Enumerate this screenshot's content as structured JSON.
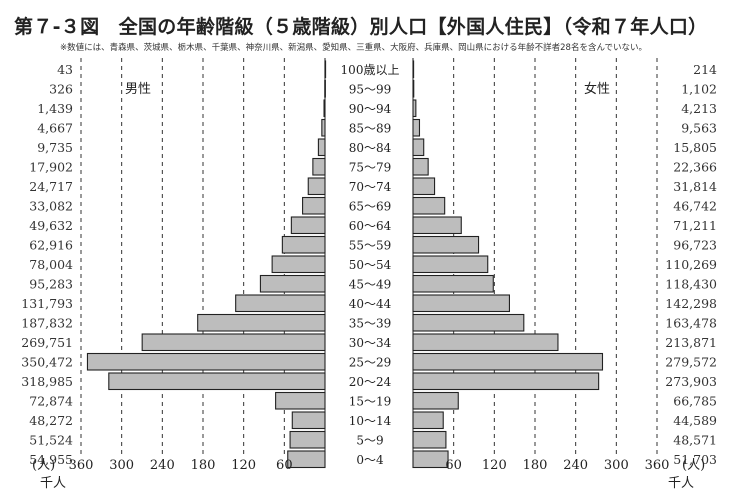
{
  "page": {
    "title": "第７-３図　全国の年齢階級（５歳階級）別人口【外国人住民】（令和７年人口）",
    "note": "※数値には、青森県、茨城県、栃木県、千葉県、神奈川県、新潟県、愛知県、三重県、大阪府、兵庫県、岡山県における年齢不詳者28名を含んでいない。"
  },
  "chart_data": {
    "type": "bar",
    "orientation": "horizontal-pyramid",
    "title": "第７-３図　全国の年齢階級（５歳階級）別人口【外国人住民】（令和７年人口）",
    "categories": [
      "100歳以上",
      "95～99",
      "90～94",
      "85～89",
      "80～84",
      "75～79",
      "70～74",
      "65～69",
      "60～64",
      "55～59",
      "50～54",
      "45～49",
      "40～44",
      "35～39",
      "30～34",
      "25～29",
      "20～24",
      "15～19",
      "10～14",
      "5～9",
      "0～4"
    ],
    "series": [
      {
        "name": "男性",
        "values": [
          43,
          326,
          1439,
          4667,
          9735,
          17902,
          24717,
          33082,
          49632,
          62916,
          78004,
          95283,
          131793,
          187832,
          269751,
          350472,
          318985,
          72874,
          48272,
          51524,
          54955
        ]
      },
      {
        "name": "女性",
        "values": [
          214,
          1102,
          4213,
          9563,
          15805,
          22366,
          31814,
          46742,
          71211,
          96723,
          110269,
          118430,
          142298,
          163478,
          213871,
          279572,
          273903,
          66785,
          44589,
          48571,
          51703
        ]
      }
    ],
    "value_labels": {
      "男性": [
        "43",
        "326",
        "1,439",
        "4,667",
        "9,735",
        "17,902",
        "24,717",
        "33,082",
        "49,632",
        "62,916",
        "78,004",
        "95,283",
        "131,793",
        "187,832",
        "269,751",
        "350,472",
        "318,985",
        "72,874",
        "48,272",
        "51,524",
        "54,955"
      ],
      "女性": [
        "214",
        "1,102",
        "4,213",
        "9,563",
        "15,805",
        "22,366",
        "31,814",
        "46,742",
        "71,211",
        "96,723",
        "110,269",
        "118,430",
        "142,298",
        "163,478",
        "213,871",
        "279,572",
        "273,903",
        "66,785",
        "44,589",
        "48,571",
        "51,703"
      ]
    },
    "x_ticks": [
      "360",
      "300",
      "240",
      "180",
      "120",
      "60"
    ],
    "x_tick_values": [
      360,
      300,
      240,
      180,
      120,
      60
    ],
    "xlim": [
      0,
      360
    ],
    "x_unit_factor": 1000,
    "unit_left": "(人)",
    "unit_right": "(人)",
    "x_unit_label": "千人",
    "grid": true,
    "bar_color": "#bdbdbd"
  }
}
